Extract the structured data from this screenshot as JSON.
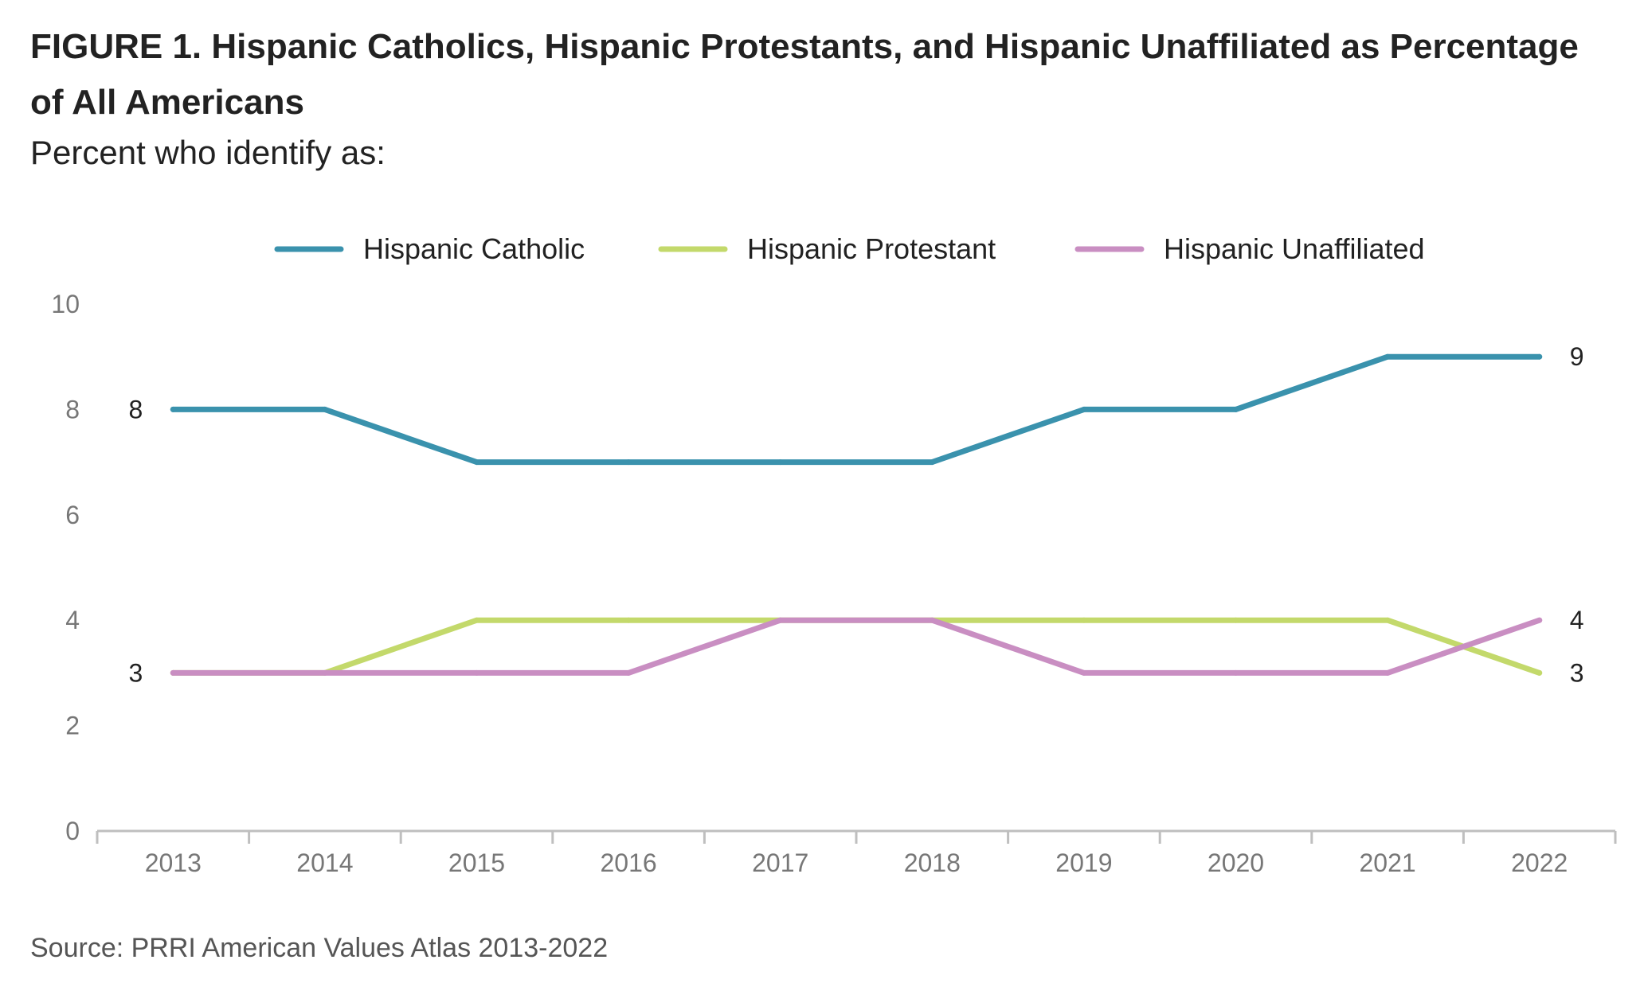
{
  "chart_data": {
    "type": "line",
    "title": "FIGURE 1.  Hispanic Catholics, Hispanic Protestants, and Hispanic Unaffiliated as Percentage of All Americans",
    "subtitle": "Percent who identify as:",
    "source": "Source: PRRI American Values Atlas 2013-2022",
    "x": [
      "2013",
      "2014",
      "2015",
      "2016",
      "2017",
      "2018",
      "2019",
      "2020",
      "2021",
      "2022"
    ],
    "ylim": [
      0,
      10
    ],
    "yticks": [
      0,
      2,
      4,
      6,
      8,
      10
    ],
    "grid": false,
    "legend_position": "top-center",
    "series": [
      {
        "name": "Hispanic Catholic",
        "color": "#3a92ad",
        "values": [
          8,
          8,
          7,
          7,
          7,
          7,
          8,
          8,
          9,
          9
        ],
        "start_label": "8",
        "end_label": "9"
      },
      {
        "name": "Hispanic Protestant",
        "color": "#c3d96b",
        "values": [
          3,
          3,
          4,
          4,
          4,
          4,
          4,
          4,
          4,
          3
        ],
        "start_label": "3",
        "end_label": "3"
      },
      {
        "name": "Hispanic Unaffiliated",
        "color": "#c98ec2",
        "values": [
          3,
          3,
          3,
          3,
          4,
          4,
          3,
          3,
          3,
          4
        ],
        "start_label": "",
        "end_label": "4"
      }
    ]
  }
}
